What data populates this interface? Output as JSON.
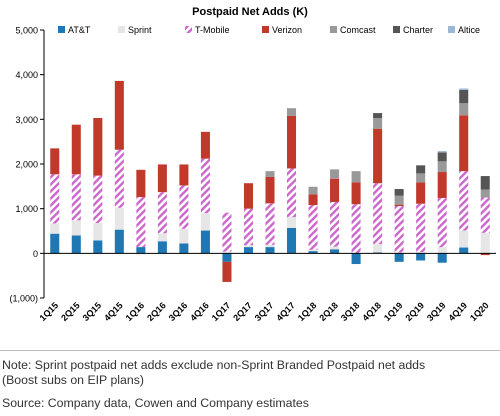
{
  "chart_data": {
    "type": "bar",
    "stacked": true,
    "title": "Postpaid Net Adds (K)",
    "xlabel": "",
    "ylabel": "",
    "ylim": [
      -1000,
      5000
    ],
    "yticks": [
      -1000,
      0,
      1000,
      2000,
      3000,
      4000,
      5000
    ],
    "ytick_labels": [
      "(1,000)",
      "0",
      "1,000",
      "2,000",
      "3,000",
      "4,000",
      "5,000"
    ],
    "grid": false,
    "legend_position": "top",
    "categories": [
      "1Q15",
      "2Q15",
      "3Q15",
      "4Q15",
      "1Q16",
      "2Q16",
      "3Q16",
      "4Q16",
      "1Q17",
      "2Q17",
      "3Q17",
      "4Q17",
      "1Q18",
      "2Q18",
      "3Q18",
      "4Q18",
      "1Q19",
      "2Q19",
      "3Q19",
      "4Q19",
      "1Q20"
    ],
    "series": [
      {
        "name": "AT&T",
        "color": "#1f77b4",
        "pattern": "solid",
        "values": [
          440,
          400,
          290,
          530,
          140,
          270,
          220,
          510,
          -190,
          140,
          140,
          570,
          50,
          90,
          -240,
          20,
          -190,
          -160,
          -210,
          130,
          0
        ]
      },
      {
        "name": "Sprint",
        "color": "#e6e6e6",
        "pattern": "solid",
        "values": [
          230,
          340,
          390,
          490,
          -30,
          180,
          330,
          390,
          40,
          40,
          50,
          240,
          30,
          60,
          0,
          190,
          20,
          30,
          140,
          380,
          460
        ]
      },
      {
        "name": "T-Mobile",
        "color": "#cc66cc",
        "pattern": "hatch",
        "values": [
          1100,
          1030,
          1060,
          1300,
          1120,
          920,
          970,
          1220,
          870,
          820,
          930,
          1090,
          1000,
          1000,
          1100,
          1360,
          1040,
          1080,
          1100,
          1330,
          790
        ]
      },
      {
        "name": "Verizon",
        "color": "#c0392b",
        "pattern": "solid",
        "values": [
          580,
          1110,
          1290,
          1540,
          610,
          620,
          470,
          600,
          -450,
          570,
          590,
          1180,
          240,
          520,
          490,
          1220,
          30,
          480,
          580,
          1250,
          -40
        ]
      },
      {
        "name": "Comcast",
        "color": "#999999",
        "pattern": "solid",
        "values": [
          0,
          0,
          0,
          0,
          0,
          0,
          0,
          0,
          0,
          0,
          130,
          170,
          170,
          210,
          250,
          240,
          200,
          200,
          240,
          270,
          180
        ]
      },
      {
        "name": "Charter",
        "color": "#555555",
        "pattern": "solid",
        "values": [
          0,
          0,
          0,
          0,
          0,
          0,
          0,
          0,
          0,
          0,
          0,
          0,
          0,
          0,
          0,
          110,
          150,
          180,
          200,
          300,
          300
        ]
      },
      {
        "name": "Altice",
        "color": "#9bb7d4",
        "pattern": "solid",
        "values": [
          0,
          0,
          0,
          0,
          0,
          0,
          0,
          0,
          0,
          0,
          0,
          0,
          0,
          0,
          0,
          0,
          0,
          0,
          30,
          30,
          0
        ]
      }
    ]
  },
  "notes": {
    "line1": "Note: Sprint postpaid net adds exclude non-Sprint Branded Postpaid net adds",
    "line2": "(Boost subs on EIP plans)",
    "source": "Source: Company data, Cowen and Company estimates"
  }
}
